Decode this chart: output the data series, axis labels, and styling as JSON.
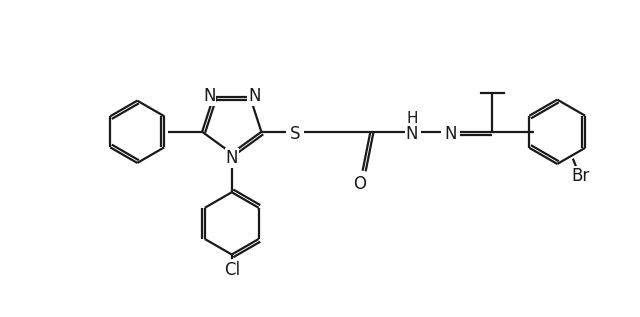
{
  "bg": "#ffffff",
  "lc": "#1a1a1a",
  "lw": 1.6,
  "fs": 12,
  "dw": 0.06,
  "fig_w": 6.4,
  "fig_h": 3.17,
  "dpi": 100,
  "xlim": [
    -0.5,
    11.5
  ],
  "ylim": [
    -0.5,
    5.5
  ]
}
